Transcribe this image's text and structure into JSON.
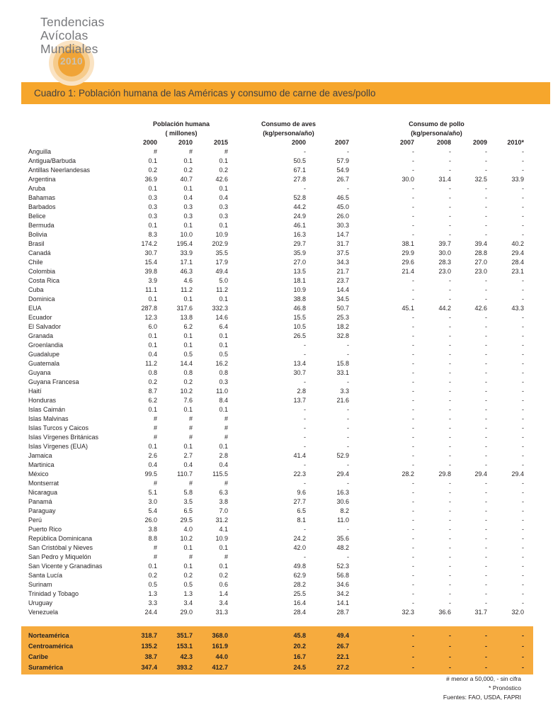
{
  "logo": {
    "lines": [
      "Tendencias",
      "Avícolas",
      "Mundiales"
    ],
    "year": "2010"
  },
  "title_bar": {
    "text": "Cuadro 1:  Población humana de las Américas y consumo de carne de aves/pollo"
  },
  "table": {
    "column_groups": [
      {
        "label": "Población humana",
        "unit": "( millones)",
        "years": [
          "2000",
          "2010",
          "2015"
        ]
      },
      {
        "label": "Consumo de aves",
        "unit": "(kg/persona/año)",
        "years": [
          "2000",
          "2007"
        ]
      },
      {
        "label": "Consumo de pollo",
        "unit": "(kg/persona/año)",
        "years": [
          "2007",
          "2008",
          "2009",
          "2010*"
        ]
      }
    ],
    "rows": [
      [
        "Anguilla",
        "#",
        "#",
        "#",
        "-",
        "-",
        "-",
        "-",
        "-",
        "-"
      ],
      [
        "Antigua/Barbuda",
        "0.1",
        "0.1",
        "0.1",
        "50.5",
        "57.9",
        "-",
        "-",
        "-",
        "-"
      ],
      [
        "Antillas Neerlandesas",
        "0.2",
        "0.2",
        "0.2",
        "67.1",
        "54.9",
        "-",
        "-",
        "-",
        "-"
      ],
      [
        "Argentina",
        "36.9",
        "40.7",
        "42.6",
        "27.8",
        "26.7",
        "30.0",
        "31.4",
        "32.5",
        "33.9"
      ],
      [
        "Aruba",
        "0.1",
        "0.1",
        "0.1",
        "-",
        "-",
        "-",
        "-",
        "-",
        "-"
      ],
      [
        "Bahamas",
        "0.3",
        "0.4",
        "0.4",
        "52.8",
        "46.5",
        "-",
        "-",
        "-",
        "-"
      ],
      [
        "Barbados",
        "0.3",
        "0.3",
        "0.3",
        "44.2",
        "45.0",
        "-",
        "-",
        "-",
        "-"
      ],
      [
        "Belice",
        "0.3",
        "0.3",
        "0.3",
        "24.9",
        "26.0",
        "-",
        "-",
        "-",
        "-"
      ],
      [
        "Bermuda",
        "0.1",
        "0.1",
        "0.1",
        "46.1",
        "30.3",
        "-",
        "-",
        "-",
        "-"
      ],
      [
        "Bolivia",
        "8.3",
        "10.0",
        "10.9",
        "16.3",
        "14.7",
        "-",
        "-",
        "-",
        "-"
      ],
      [
        "Brasil",
        "174.2",
        "195.4",
        "202.9",
        "29.7",
        "31.7",
        "38.1",
        "39.7",
        "39.4",
        "40.2"
      ],
      [
        "Canadá",
        "30.7",
        "33.9",
        "35.5",
        "35.9",
        "37.5",
        "29.9",
        "30.0",
        "28.8",
        "29.4"
      ],
      [
        "Chile",
        "15.4",
        "17.1",
        "17.9",
        "27.0",
        "34.3",
        "29.6",
        "28.3",
        "27.0",
        "28.4"
      ],
      [
        "Colombia",
        "39.8",
        "46.3",
        "49.4",
        "13.5",
        "21.7",
        "21.4",
        "23.0",
        "23.0",
        "23.1"
      ],
      [
        "Costa Rica",
        "3.9",
        "4.6",
        "5.0",
        "18.1",
        "23.7",
        "-",
        "-",
        "-",
        "-"
      ],
      [
        "Cuba",
        "11.1",
        "11.2",
        "11.2",
        "10.9",
        "14.4",
        "-",
        "-",
        "-",
        "-"
      ],
      [
        "Dominica",
        "0.1",
        "0.1",
        "0.1",
        "38.8",
        "34.5",
        "-",
        "-",
        "-",
        "-"
      ],
      [
        "EUA",
        "287.8",
        "317.6",
        "332.3",
        "46.8",
        "50.7",
        "45.1",
        "44.2",
        "42.6",
        "43.3"
      ],
      [
        "Ecuador",
        "12.3",
        "13.8",
        "14.6",
        "15.5",
        "25.3",
        "-",
        "-",
        "-",
        "-"
      ],
      [
        "El Salvador",
        "6.0",
        "6.2",
        "6.4",
        "10.5",
        "18.2",
        "-",
        "-",
        "-",
        "-"
      ],
      [
        "Granada",
        "0.1",
        "0.1",
        "0.1",
        "26.5",
        "32.8",
        "-",
        "-",
        "-",
        "-"
      ],
      [
        "Groenlandia",
        "0.1",
        "0.1",
        "0.1",
        "-",
        "-",
        "-",
        "-",
        "-",
        "-"
      ],
      [
        "Guadalupe",
        "0.4",
        "0.5",
        "0.5",
        "-",
        "-",
        "-",
        "-",
        "-",
        "-"
      ],
      [
        "Guatemala",
        "11.2",
        "14.4",
        "16.2",
        "13.4",
        "15.8",
        "-",
        "-",
        "-",
        "-"
      ],
      [
        "Guyana",
        "0.8",
        "0.8",
        "0.8",
        "30.7",
        "33.1",
        "-",
        "-",
        "-",
        "-"
      ],
      [
        "Guyana Francesa",
        "0.2",
        "0.2",
        "0.3",
        "-",
        "-",
        "-",
        "-",
        "-",
        "-"
      ],
      [
        "Haití",
        "8.7",
        "10.2",
        "11.0",
        "2.8",
        "3.3",
        "-",
        "-",
        "-",
        "-"
      ],
      [
        "Honduras",
        "6.2",
        "7.6",
        "8.4",
        "13.7",
        "21.6",
        "-",
        "-",
        "-",
        "-"
      ],
      [
        "Islas Caimán",
        "0.1",
        "0.1",
        "0.1",
        "-",
        "-",
        "-",
        "-",
        "-",
        "-"
      ],
      [
        "Islas Malvinas",
        "#",
        "#",
        "#",
        "-",
        "-",
        "-",
        "-",
        "-",
        "-"
      ],
      [
        "Islas Turcos y Caicos",
        "#",
        "#",
        "#",
        "-",
        "-",
        "-",
        "-",
        "-",
        "-"
      ],
      [
        "Islas Vírgenes Británicas",
        "#",
        "#",
        "#",
        "-",
        "-",
        "-",
        "-",
        "-",
        "-"
      ],
      [
        "Islas Vírgenes (EUA)",
        "0.1",
        "0.1",
        "0.1",
        "-",
        "-",
        "-",
        "-",
        "-",
        "-"
      ],
      [
        "Jamaica",
        "2.6",
        "2.7",
        "2.8",
        "41.4",
        "52.9",
        "-",
        "-",
        "-",
        "-"
      ],
      [
        "Martinica",
        "0.4",
        "0.4",
        "0.4",
        "-",
        "-",
        "-",
        "-",
        "-",
        "-"
      ],
      [
        "México",
        "99.5",
        "110.7",
        "115.5",
        "22.3",
        "29.4",
        "28.2",
        "29.8",
        "29.4",
        "29.4"
      ],
      [
        "Montserrat",
        "#",
        "#",
        "#",
        "-",
        "-",
        "-",
        "-",
        "-",
        "-"
      ],
      [
        "Nicaragua",
        "5.1",
        "5.8",
        "6.3",
        "9.6",
        "16.3",
        "-",
        "-",
        "-",
        "-"
      ],
      [
        "Panamá",
        "3.0",
        "3.5",
        "3.8",
        "27.7",
        "30.6",
        "-",
        "-",
        "-",
        "-"
      ],
      [
        "Paraguay",
        "5.4",
        "6.5",
        "7.0",
        "6.5",
        "8.2",
        "-",
        "-",
        "-",
        "-"
      ],
      [
        "Perú",
        "26.0",
        "29.5",
        "31.2",
        "8.1",
        "11.0",
        "-",
        "-",
        "-",
        "-"
      ],
      [
        "Puerto Rico",
        "3.8",
        "4.0",
        "4.1",
        "-",
        "-",
        "-",
        "-",
        "-",
        "-"
      ],
      [
        "República Dominicana",
        "8.8",
        "10.2",
        "10.9",
        "24.2",
        "35.6",
        "-",
        "-",
        "-",
        "-"
      ],
      [
        "San Cristóbal y Nieves",
        "#",
        "0.1",
        "0.1",
        "42.0",
        "48.2",
        "-",
        "-",
        "-",
        "-"
      ],
      [
        "San Pedro y Miquelón",
        "#",
        "#",
        "#",
        "-",
        "-",
        "-",
        "-",
        "-",
        "-"
      ],
      [
        "San Vicente y Granadinas",
        "0.1",
        "0.1",
        "0.1",
        "49.8",
        "52.3",
        "-",
        "-",
        "-",
        "-"
      ],
      [
        "Santa Lucía",
        "0.2",
        "0.2",
        "0.2",
        "62.9",
        "56.8",
        "-",
        "-",
        "-",
        "-"
      ],
      [
        "Surinam",
        "0.5",
        "0.5",
        "0.6",
        "28.2",
        "34.6",
        "-",
        "-",
        "-",
        "-"
      ],
      [
        "Trinidad y Tobago",
        "1.3",
        "1.3",
        "1.4",
        "25.5",
        "34.2",
        "-",
        "-",
        "-",
        "-"
      ],
      [
        "Uruguay",
        "3.3",
        "3.4",
        "3.4",
        "16.4",
        "14.1",
        "-",
        "-",
        "-",
        "-"
      ],
      [
        "Venezuela",
        "24.4",
        "29.0",
        "31.3",
        "28.4",
        "28.7",
        "32.3",
        "36.6",
        "31.7",
        "32.0"
      ]
    ],
    "summary_rows": [
      [
        "Norteamérica",
        "318.7",
        "351.7",
        "368.0",
        "45.8",
        "49.4",
        "-",
        "-",
        "-",
        "-"
      ],
      [
        "Centroamérica",
        "135.2",
        "153.1",
        "161.9",
        "20.2",
        "26.7",
        "-",
        "-",
        "-",
        "-"
      ],
      [
        "Caribe",
        "38.7",
        "42.3",
        "44.0",
        "16.7",
        "22.1",
        "-",
        "-",
        "-",
        "-"
      ],
      [
        "Suramérica",
        "347.4",
        "393.2",
        "412.7",
        "24.5",
        "27.2",
        "-",
        "-",
        "-",
        "-"
      ]
    ]
  },
  "footnotes": [
    "# menor a 50,000,  - sin cifra",
    "* Pronóstico",
    "Fuentes: FAO, USDA, FAPRI"
  ],
  "colors": {
    "title_bar_orange": "#F6A62C",
    "summary_band_orange": "#F6AB3E",
    "logo_circle_inner": "#F0A437",
    "logo_circle_mid": "#F6CB8B",
    "logo_circle_outer": "#FAE3C3",
    "logo_text_gray": "#77787B",
    "body_text": "#231F20"
  }
}
